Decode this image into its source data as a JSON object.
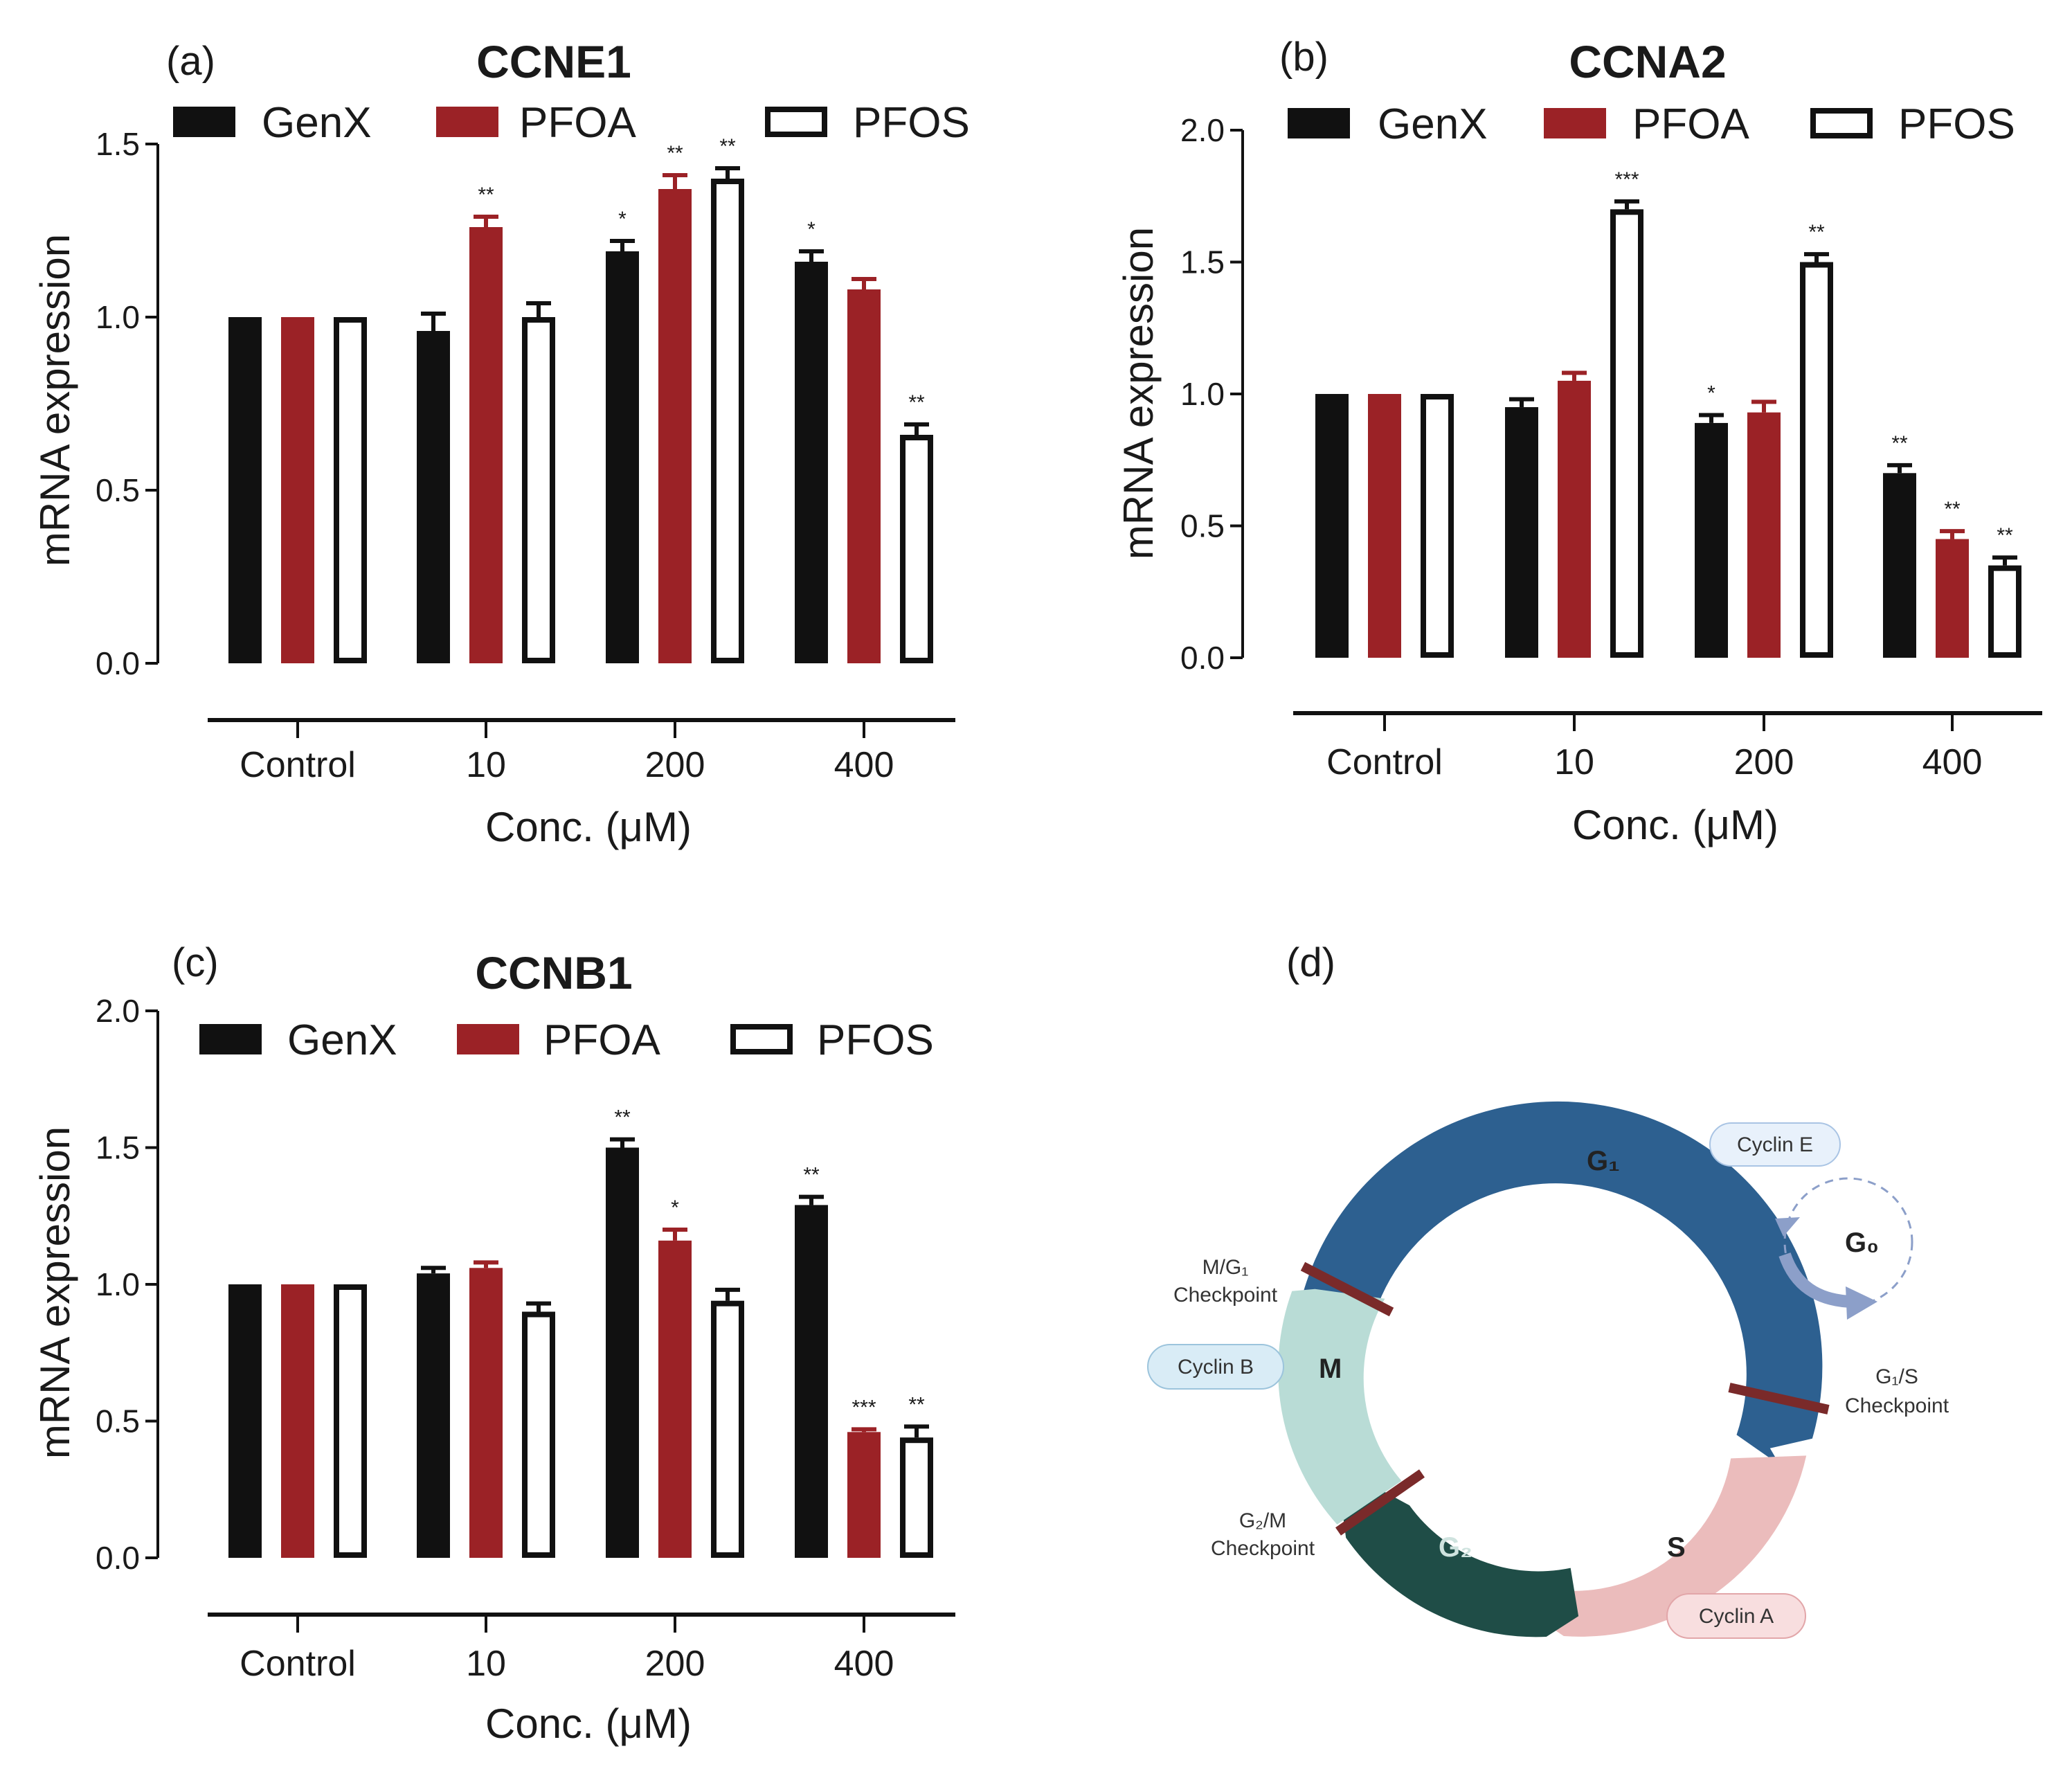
{
  "colors": {
    "GenX": "#111111",
    "PFOA": "#9b2226",
    "PFOS": "#ffffff",
    "g1": "#2d6090",
    "s": "#ebbcbc",
    "g2": "#1f4d47",
    "m": "#b9dcd6",
    "g0_arrow": "#8c9fc9",
    "checkpoint": "#7a2a2a"
  },
  "chart_data": [
    {
      "panel": "(a)",
      "type": "bar",
      "title": "CCNE1",
      "xlabel": "Conc. (μM)",
      "ylabel": "mRNA expression",
      "ylim": [
        0,
        1.5
      ],
      "yticks": [
        "0.0",
        "0.5",
        "1.0",
        "1.5"
      ],
      "categories": [
        "Control",
        "10",
        "200",
        "400"
      ],
      "legend": [
        "GenX",
        "PFOA",
        "PFOS"
      ],
      "series": [
        {
          "name": "GenX",
          "values": [
            1.0,
            0.96,
            1.19,
            1.16
          ],
          "errors": [
            0,
            0.05,
            0.03,
            0.03
          ],
          "sig": [
            "",
            "",
            "*",
            "*"
          ]
        },
        {
          "name": "PFOA",
          "values": [
            1.0,
            1.26,
            1.37,
            1.08
          ],
          "errors": [
            0,
            0.03,
            0.04,
            0.03
          ],
          "sig": [
            "",
            "**",
            "**",
            ""
          ]
        },
        {
          "name": "PFOS",
          "values": [
            1.0,
            1.0,
            1.4,
            0.66
          ],
          "errors": [
            0,
            0.04,
            0.03,
            0.03
          ],
          "sig": [
            "",
            "",
            "**",
            "**"
          ]
        }
      ]
    },
    {
      "panel": "(b)",
      "type": "bar",
      "title": "CCNA2",
      "xlabel": "Conc. (μM)",
      "ylabel": "mRNA expression",
      "ylim": [
        0,
        2.0
      ],
      "yticks": [
        "0.0",
        "0.5",
        "1.0",
        "1.5",
        "2.0"
      ],
      "categories": [
        "Control",
        "10",
        "200",
        "400"
      ],
      "legend": [
        "GenX",
        "PFOA",
        "PFOS"
      ],
      "series": [
        {
          "name": "GenX",
          "values": [
            1.0,
            0.95,
            0.89,
            0.7
          ],
          "errors": [
            0,
            0.03,
            0.03,
            0.03
          ],
          "sig": [
            "",
            "",
            "*",
            "**"
          ]
        },
        {
          "name": "PFOA",
          "values": [
            1.0,
            1.05,
            0.93,
            0.45
          ],
          "errors": [
            0,
            0.03,
            0.04,
            0.03
          ],
          "sig": [
            "",
            "",
            "",
            "**"
          ]
        },
        {
          "name": "PFOS",
          "values": [
            1.0,
            1.7,
            1.5,
            0.35
          ],
          "errors": [
            0,
            0.03,
            0.03,
            0.03
          ],
          "sig": [
            "",
            "***",
            "**",
            "**"
          ]
        }
      ]
    },
    {
      "panel": "(c)",
      "type": "bar",
      "title": "CCNB1",
      "xlabel": "Conc. (μM)",
      "ylabel": "mRNA expression",
      "ylim": [
        0,
        2.0
      ],
      "yticks": [
        "0.0",
        "0.5",
        "1.0",
        "1.5",
        "2.0"
      ],
      "categories": [
        "Control",
        "10",
        "200",
        "400"
      ],
      "legend": [
        "GenX",
        "PFOA",
        "PFOS"
      ],
      "series": [
        {
          "name": "GenX",
          "values": [
            1.0,
            1.04,
            1.5,
            1.29
          ],
          "errors": [
            0,
            0.02,
            0.03,
            0.03
          ],
          "sig": [
            "",
            "",
            "**",
            "**"
          ]
        },
        {
          "name": "PFOA",
          "values": [
            1.0,
            1.06,
            1.16,
            0.46
          ],
          "errors": [
            0,
            0.02,
            0.04,
            0.01
          ],
          "sig": [
            "",
            "",
            "*",
            "***"
          ]
        },
        {
          "name": "PFOS",
          "values": [
            1.0,
            0.9,
            0.94,
            0.44
          ],
          "errors": [
            0,
            0.03,
            0.04,
            0.04
          ],
          "sig": [
            "",
            "",
            "",
            "**"
          ]
        }
      ]
    }
  ],
  "cell_cycle": {
    "panel": "(d)",
    "phases": {
      "g1": "G₁",
      "s": "S",
      "g2": "G₂",
      "m": "M",
      "g0": "G₀"
    },
    "cyclins": {
      "e": "Cyclin E",
      "a": "Cyclin A",
      "b": "Cyclin B"
    },
    "checkpoints": {
      "mg1_line1": "M/G₁",
      "mg1_line2": "Checkpoint",
      "g1s_line1": "G₁/S",
      "g1s_line2": "Checkpoint",
      "g2m_line1": "G₂/M",
      "g2m_line2": "Checkpoint"
    }
  }
}
